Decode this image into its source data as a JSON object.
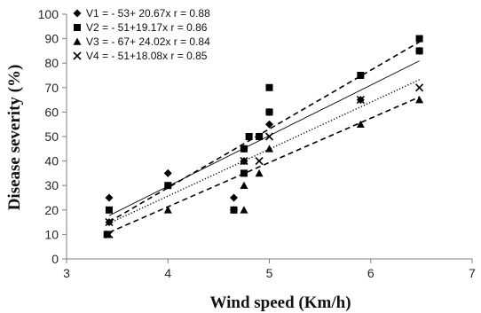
{
  "chart_data": {
    "type": "scatter",
    "title": "",
    "xlabel": "Wind speed (Km/h)",
    "ylabel": "Disease severity (%)",
    "xlim": [
      3,
      7
    ],
    "ylim": [
      0,
      100
    ],
    "xticks": [
      "3",
      "4",
      "5",
      "6",
      "7"
    ],
    "yticks": [
      "0",
      "10",
      "20",
      "30",
      "40",
      "50",
      "60",
      "70",
      "80",
      "90",
      "100"
    ],
    "grid": false,
    "legend": "top-left",
    "series": [
      {
        "name": "V1",
        "marker": "diamond",
        "legend_text": "V1 = - 53+ 20.67x   r = 0.88",
        "fit": {
          "intercept": -53,
          "slope": 20.67,
          "style": "solid",
          "x_range": [
            3.42,
            6.48
          ]
        },
        "x": [
          3.42,
          3.42,
          4.0,
          4.65,
          4.65,
          4.75,
          4.75,
          4.9,
          5.0,
          5.0,
          5.9,
          6.48
        ],
        "y": [
          25,
          15,
          35,
          25,
          20,
          45,
          40,
          50,
          55,
          60,
          65,
          85
        ]
      },
      {
        "name": "V2",
        "marker": "square",
        "legend_text": "V2 = - 51+19.17x    r = 0.86",
        "fit": {
          "intercept": -51,
          "slope": 19.17,
          "style": "dotted",
          "x_range": [
            3.42,
            6.48
          ]
        },
        "x": [
          3.42,
          3.4,
          4.0,
          4.65,
          4.75,
          4.75,
          4.8,
          4.9,
          5.0,
          5.0,
          5.9,
          6.48,
          6.48
        ],
        "y": [
          20,
          10,
          30,
          20,
          45,
          35,
          50,
          50,
          60,
          70,
          75,
          85,
          90
        ]
      },
      {
        "name": "V3",
        "marker": "triangle",
        "legend_text": "V3 = - 67+ 24.02x   r = 0.84",
        "fit": {
          "intercept": -67,
          "slope": 24.02,
          "style": "dashed",
          "x_range": [
            3.42,
            6.48
          ]
        },
        "x": [
          3.4,
          4.0,
          4.75,
          4.75,
          4.75,
          4.9,
          5.0,
          5.9,
          6.48
        ],
        "y": [
          10,
          20,
          20,
          30,
          40,
          35,
          45,
          55,
          65
        ]
      },
      {
        "name": "V4",
        "marker": "x",
        "legend_text": "V4 = - 51+18.08x     r = 0.85",
        "fit": {
          "intercept": -51,
          "slope": 18.08,
          "style": "dashed",
          "x_range": [
            3.42,
            6.48
          ]
        },
        "x": [
          3.42,
          3.42,
          4.75,
          4.9,
          5.0,
          5.9,
          6.48
        ],
        "y": [
          15,
          10,
          40,
          40,
          50,
          65,
          70
        ]
      }
    ]
  }
}
